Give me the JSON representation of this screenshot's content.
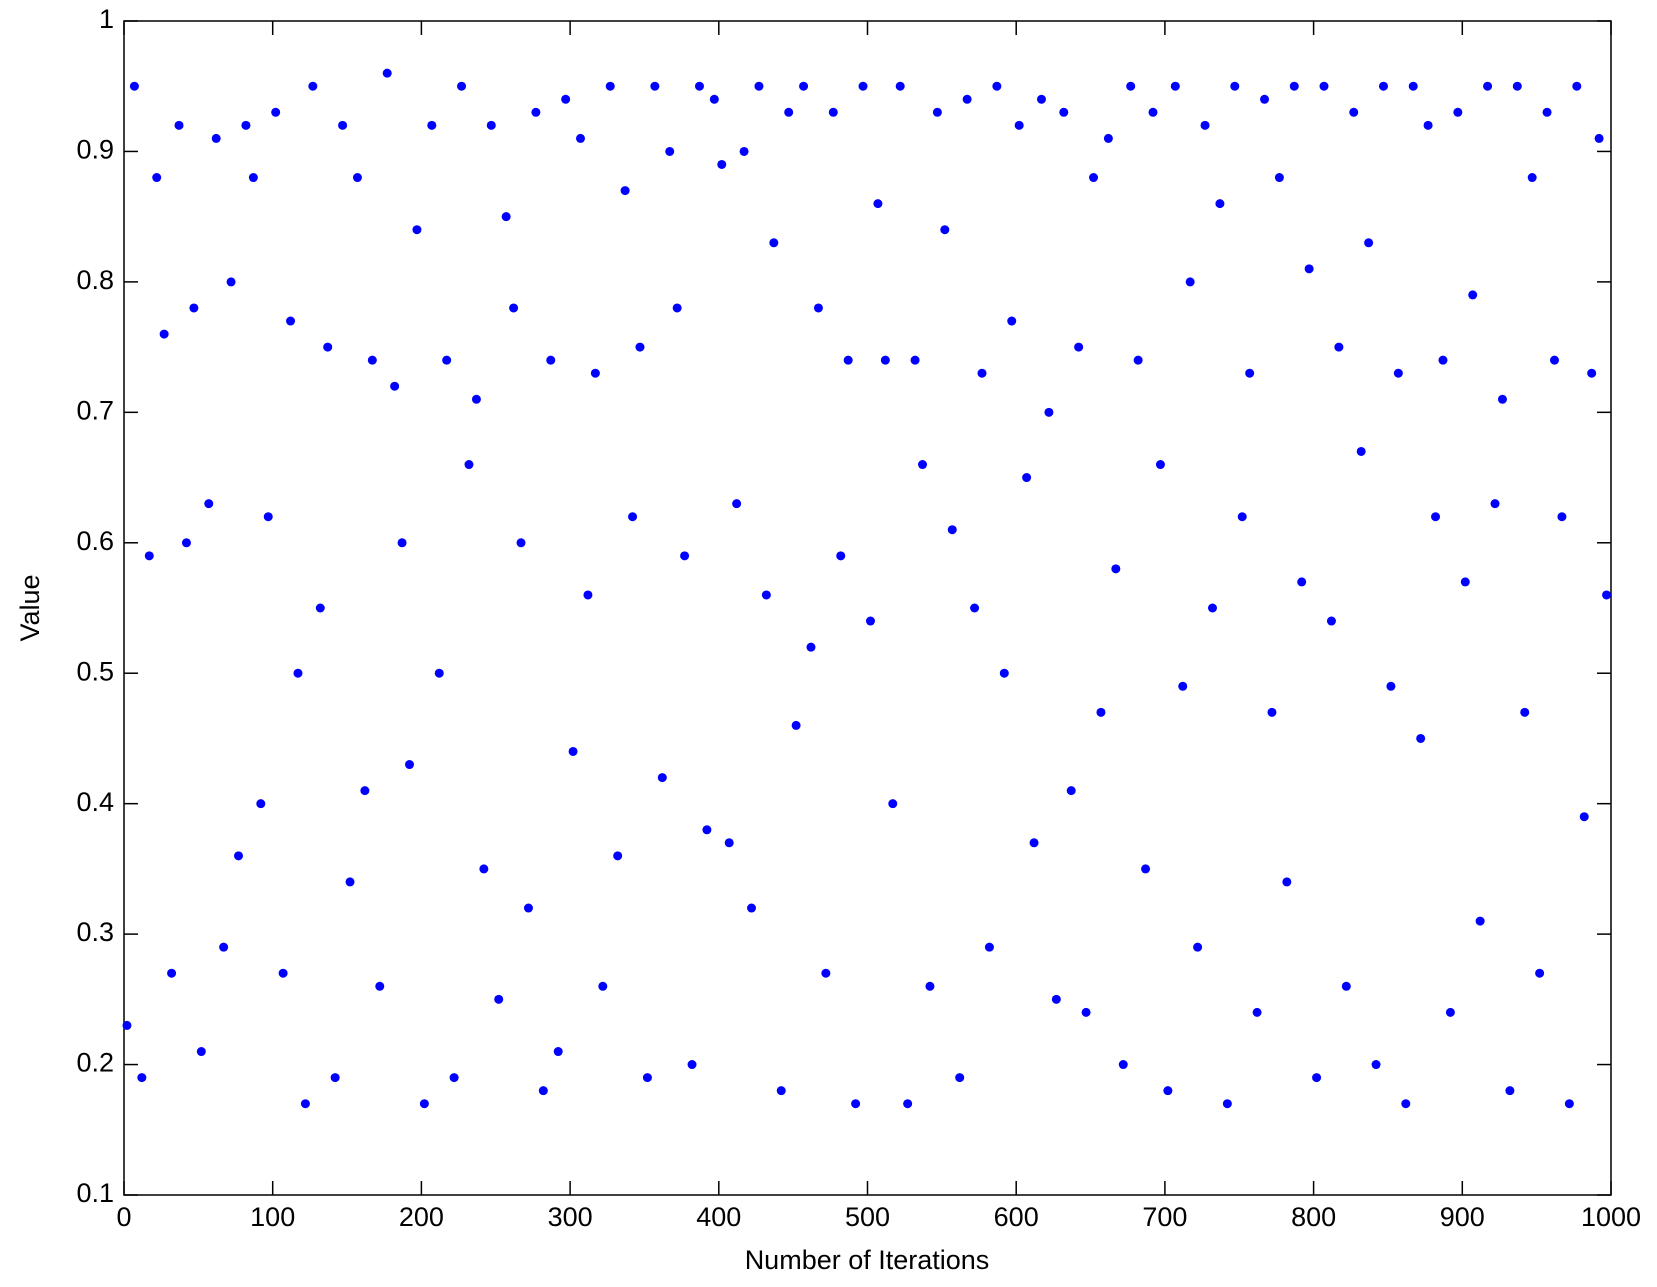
{
  "chart_data": {
    "type": "scatter",
    "x_label": "Number of Iterations",
    "y_label": "Value",
    "color": "#0000ff",
    "xlim": [
      0,
      1000
    ],
    "ylim": [
      0.1,
      1
    ],
    "xticks": [
      0,
      100,
      200,
      300,
      400,
      500,
      600,
      700,
      800,
      900,
      1000
    ],
    "yticks": [
      0.1,
      0.2,
      0.3,
      0.4,
      0.5,
      0.6,
      0.7,
      0.8,
      0.9,
      1
    ],
    "x": [
      2,
      7,
      12,
      17,
      22,
      27,
      32,
      37,
      42,
      47,
      52,
      57,
      62,
      67,
      72,
      77,
      82,
      87,
      92,
      97,
      102,
      107,
      112,
      117,
      122,
      127,
      132,
      137,
      142,
      147,
      152,
      157,
      162,
      167,
      172,
      177,
      182,
      187,
      192,
      197,
      202,
      207,
      212,
      217,
      222,
      227,
      232,
      237,
      242,
      247,
      252,
      257,
      262,
      267,
      272,
      277,
      282,
      287,
      292,
      297,
      302,
      307,
      312,
      317,
      322,
      327,
      332,
      337,
      342,
      347,
      352,
      357,
      362,
      367,
      372,
      377,
      382,
      387,
      392,
      397,
      402,
      407,
      412,
      417,
      422,
      427,
      432,
      437,
      442,
      447,
      452,
      457,
      462,
      467,
      472,
      477,
      482,
      487,
      492,
      497,
      502,
      507,
      512,
      517,
      522,
      527,
      532,
      537,
      542,
      547,
      552,
      557,
      562,
      567,
      572,
      577,
      582,
      587,
      592,
      597,
      602,
      607,
      612,
      617,
      622,
      627,
      632,
      637,
      642,
      647,
      652,
      657,
      662,
      667,
      672,
      677,
      682,
      687,
      692,
      697,
      702,
      707,
      712,
      717,
      722,
      727,
      732,
      737,
      742,
      747,
      752,
      757,
      762,
      767,
      772,
      777,
      782,
      787,
      792,
      797,
      802,
      807,
      812,
      817,
      822,
      827,
      832,
      837,
      842,
      847,
      852,
      857,
      862,
      867,
      872,
      877,
      882,
      887,
      892,
      897,
      902,
      907,
      912,
      917,
      922,
      927,
      932,
      937,
      942,
      947,
      952,
      957,
      962,
      967,
      972,
      977,
      982,
      987,
      992,
      997
    ],
    "values": [
      0.23,
      0.95,
      0.19,
      0.59,
      0.88,
      0.76,
      0.27,
      0.92,
      0.6,
      0.78,
      0.21,
      0.63,
      0.91,
      0.29,
      0.8,
      0.36,
      0.92,
      0.88,
      0.4,
      0.62,
      0.93,
      0.27,
      0.77,
      0.5,
      0.17,
      0.95,
      0.55,
      0.75,
      0.19,
      0.92,
      0.34,
      0.88,
      0.41,
      0.74,
      0.26,
      0.96,
      0.72,
      0.6,
      0.43,
      0.84,
      0.17,
      0.92,
      0.5,
      0.74,
      0.19,
      0.95,
      0.66,
      0.71,
      0.35,
      0.92,
      0.25,
      0.85,
      0.78,
      0.6,
      0.32,
      0.93,
      0.18,
      0.74,
      0.21,
      0.94,
      0.44,
      0.91,
      0.56,
      0.73,
      0.26,
      0.95,
      0.36,
      0.87,
      0.62,
      0.75,
      0.19,
      0.95,
      0.42,
      0.9,
      0.78,
      0.59,
      0.2,
      0.95,
      0.38,
      0.94,
      0.89,
      0.37,
      0.63,
      0.9,
      0.32,
      0.95,
      0.56,
      0.83,
      0.18,
      0.93,
      0.46,
      0.95,
      0.52,
      0.78,
      0.27,
      0.93,
      0.59,
      0.74,
      0.17,
      0.95,
      0.54,
      0.86,
      0.74,
      0.4,
      0.95,
      0.17,
      0.74,
      0.66,
      0.26,
      0.93,
      0.84,
      0.61,
      0.19,
      0.94,
      0.55,
      0.73,
      0.29,
      0.95,
      0.5,
      0.77,
      0.92,
      0.65,
      0.37,
      0.94,
      0.7,
      0.25,
      0.93,
      0.41,
      0.75,
      0.24,
      0.88,
      0.47,
      0.91,
      0.58,
      0.2,
      0.95,
      0.74,
      0.35,
      0.93,
      0.66,
      0.18,
      0.95,
      0.49,
      0.8,
      0.29,
      0.92,
      0.55,
      0.86,
      0.17,
      0.95,
      0.62,
      0.73,
      0.24,
      0.94,
      0.47,
      0.88,
      0.34,
      0.95,
      0.57,
      0.81,
      0.19,
      0.95,
      0.54,
      0.75,
      0.26,
      0.93,
      0.67,
      0.83,
      0.2,
      0.95,
      0.49,
      0.73,
      0.17,
      0.95,
      0.45,
      0.92,
      0.62,
      0.74,
      0.24,
      0.93,
      0.57,
      0.79,
      0.31,
      0.95,
      0.63,
      0.71,
      0.18,
      0.95,
      0.47,
      0.88,
      0.27,
      0.93,
      0.74,
      0.62,
      0.17,
      0.95,
      0.39,
      0.73,
      0.91,
      0.56
    ]
  }
}
